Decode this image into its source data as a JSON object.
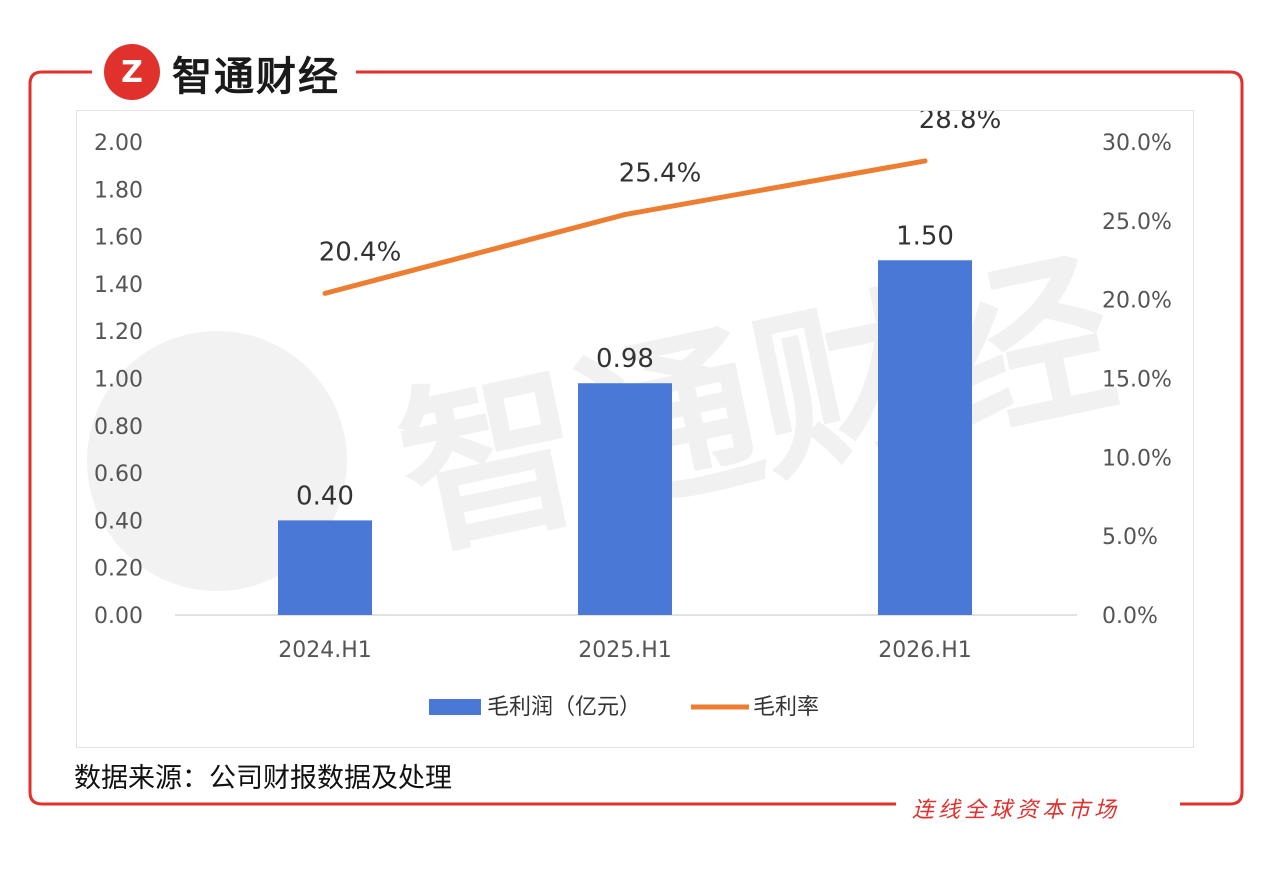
{
  "brand": {
    "logo_glyph": "Z",
    "name": "智通财经",
    "accent_color": "#e0312c"
  },
  "source_note": "数据来源：公司财报数据及处理",
  "footer_slogan": "连线全球资本市场",
  "watermark_text": "智通财经",
  "chart_data": {
    "type": "bar",
    "categories": [
      "2024.H1",
      "2025.H1",
      "2026.H1"
    ],
    "series": [
      {
        "name": "毛利润（亿元）",
        "type": "bar",
        "axis": "left",
        "values": [
          0.4,
          0.98,
          1.5
        ],
        "labels": [
          "0.40",
          "0.98",
          "1.50"
        ],
        "color": "#4a78d6"
      },
      {
        "name": "毛利率",
        "type": "line",
        "axis": "right",
        "values": [
          20.4,
          25.4,
          28.8
        ],
        "labels": [
          "20.4%",
          "25.4%",
          "28.8%"
        ],
        "color": "#ed7d31"
      }
    ],
    "y_left": {
      "ylim": [
        0,
        2.0
      ],
      "ticks": [
        "0.00",
        "0.20",
        "0.40",
        "0.60",
        "0.80",
        "1.00",
        "1.20",
        "1.40",
        "1.60",
        "1.80",
        "2.00"
      ]
    },
    "y_right": {
      "ylim": [
        0,
        30
      ],
      "ticks": [
        "0.0%",
        "5.0%",
        "10.0%",
        "15.0%",
        "20.0%",
        "25.0%",
        "30.0%"
      ]
    },
    "legend_placement": "bottom",
    "grid": false
  }
}
